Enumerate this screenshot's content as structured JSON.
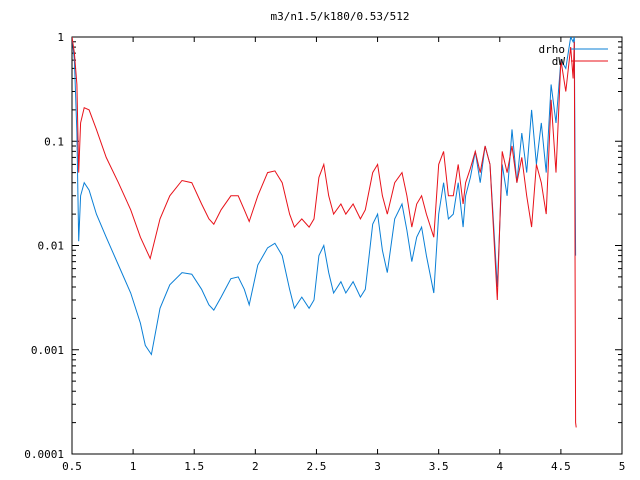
{
  "chart_data": {
    "type": "line",
    "title": "m3/n1.5/k180/0.53/512",
    "xlabel": "",
    "ylabel": "",
    "xlim": [
      0.5,
      5
    ],
    "ylim": [
      0.0001,
      1
    ],
    "yscale": "log",
    "grid": false,
    "legend_position": "top-right",
    "x_ticks": [
      0.5,
      1,
      1.5,
      2,
      2.5,
      3,
      3.5,
      4,
      4.5,
      5
    ],
    "x_tick_labels": [
      "0.5",
      "1",
      "1.5",
      "2",
      "2.5",
      "3",
      "3.5",
      "4",
      "4.5",
      "5"
    ],
    "y_ticks": [
      0.0001,
      0.001,
      0.01,
      0.1,
      1
    ],
    "y_tick_labels": [
      "0.0001",
      "0.001",
      "0.01",
      "0.1",
      "1"
    ],
    "series": [
      {
        "name": "drho",
        "color": "#0a7fd6",
        "points": [
          [
            0.5,
            1.0
          ],
          [
            0.52,
            0.6
          ],
          [
            0.54,
            0.12
          ],
          [
            0.555,
            0.011
          ],
          [
            0.57,
            0.03
          ],
          [
            0.6,
            0.04
          ],
          [
            0.64,
            0.034
          ],
          [
            0.7,
            0.02
          ],
          [
            0.78,
            0.012
          ],
          [
            0.88,
            0.0065
          ],
          [
            0.98,
            0.0035
          ],
          [
            1.06,
            0.0018
          ],
          [
            1.1,
            0.0011
          ],
          [
            1.15,
            0.0009
          ],
          [
            1.22,
            0.0025
          ],
          [
            1.3,
            0.0042
          ],
          [
            1.4,
            0.0055
          ],
          [
            1.48,
            0.0053
          ],
          [
            1.56,
            0.0038
          ],
          [
            1.62,
            0.0027
          ],
          [
            1.66,
            0.0024
          ],
          [
            1.72,
            0.0032
          ],
          [
            1.8,
            0.0048
          ],
          [
            1.86,
            0.005
          ],
          [
            1.91,
            0.0038
          ],
          [
            1.95,
            0.0027
          ],
          [
            2.02,
            0.0065
          ],
          [
            2.1,
            0.0095
          ],
          [
            2.16,
            0.0105
          ],
          [
            2.22,
            0.008
          ],
          [
            2.28,
            0.0038
          ],
          [
            2.32,
            0.0025
          ],
          [
            2.38,
            0.0032
          ],
          [
            2.44,
            0.0025
          ],
          [
            2.48,
            0.003
          ],
          [
            2.52,
            0.008
          ],
          [
            2.56,
            0.01
          ],
          [
            2.6,
            0.0055
          ],
          [
            2.64,
            0.0035
          ],
          [
            2.7,
            0.0045
          ],
          [
            2.74,
            0.0035
          ],
          [
            2.8,
            0.0045
          ],
          [
            2.86,
            0.0032
          ],
          [
            2.9,
            0.0038
          ],
          [
            2.96,
            0.016
          ],
          [
            3.0,
            0.02
          ],
          [
            3.04,
            0.009
          ],
          [
            3.08,
            0.0055
          ],
          [
            3.14,
            0.018
          ],
          [
            3.2,
            0.025
          ],
          [
            3.24,
            0.014
          ],
          [
            3.28,
            0.007
          ],
          [
            3.32,
            0.012
          ],
          [
            3.36,
            0.015
          ],
          [
            3.4,
            0.008
          ],
          [
            3.46,
            0.0035
          ],
          [
            3.5,
            0.02
          ],
          [
            3.54,
            0.04
          ],
          [
            3.58,
            0.018
          ],
          [
            3.62,
            0.02
          ],
          [
            3.66,
            0.04
          ],
          [
            3.7,
            0.015
          ],
          [
            3.72,
            0.03
          ],
          [
            3.76,
            0.045
          ],
          [
            3.8,
            0.08
          ],
          [
            3.84,
            0.04
          ],
          [
            3.88,
            0.09
          ],
          [
            3.92,
            0.06
          ],
          [
            3.96,
            0.01
          ],
          [
            3.98,
            0.004
          ],
          [
            4.02,
            0.06
          ],
          [
            4.06,
            0.03
          ],
          [
            4.1,
            0.13
          ],
          [
            4.14,
            0.04
          ],
          [
            4.18,
            0.12
          ],
          [
            4.22,
            0.05
          ],
          [
            4.26,
            0.2
          ],
          [
            4.3,
            0.06
          ],
          [
            4.34,
            0.15
          ],
          [
            4.38,
            0.05
          ],
          [
            4.42,
            0.35
          ],
          [
            4.46,
            0.15
          ],
          [
            4.5,
            0.6
          ],
          [
            4.54,
            0.5
          ],
          [
            4.58,
            1.0
          ],
          [
            4.6,
            0.9
          ],
          [
            4.61,
            1.0
          ],
          [
            4.62,
            0.008
          ]
        ]
      },
      {
        "name": "dW",
        "color": "#e8121a",
        "points": [
          [
            0.5,
            1.0
          ],
          [
            0.52,
            0.7
          ],
          [
            0.54,
            0.35
          ],
          [
            0.555,
            0.05
          ],
          [
            0.57,
            0.15
          ],
          [
            0.6,
            0.21
          ],
          [
            0.64,
            0.2
          ],
          [
            0.7,
            0.13
          ],
          [
            0.78,
            0.07
          ],
          [
            0.88,
            0.04
          ],
          [
            0.98,
            0.022
          ],
          [
            1.06,
            0.012
          ],
          [
            1.14,
            0.0075
          ],
          [
            1.22,
            0.018
          ],
          [
            1.3,
            0.03
          ],
          [
            1.4,
            0.042
          ],
          [
            1.48,
            0.04
          ],
          [
            1.56,
            0.025
          ],
          [
            1.62,
            0.018
          ],
          [
            1.66,
            0.016
          ],
          [
            1.72,
            0.022
          ],
          [
            1.8,
            0.03
          ],
          [
            1.86,
            0.03
          ],
          [
            1.91,
            0.022
          ],
          [
            1.95,
            0.017
          ],
          [
            2.02,
            0.03
          ],
          [
            2.1,
            0.05
          ],
          [
            2.16,
            0.052
          ],
          [
            2.22,
            0.04
          ],
          [
            2.28,
            0.02
          ],
          [
            2.32,
            0.015
          ],
          [
            2.38,
            0.018
          ],
          [
            2.44,
            0.015
          ],
          [
            2.48,
            0.018
          ],
          [
            2.52,
            0.045
          ],
          [
            2.56,
            0.06
          ],
          [
            2.6,
            0.03
          ],
          [
            2.64,
            0.02
          ],
          [
            2.7,
            0.025
          ],
          [
            2.74,
            0.02
          ],
          [
            2.8,
            0.025
          ],
          [
            2.86,
            0.018
          ],
          [
            2.9,
            0.022
          ],
          [
            2.96,
            0.05
          ],
          [
            3.0,
            0.06
          ],
          [
            3.04,
            0.03
          ],
          [
            3.08,
            0.02
          ],
          [
            3.14,
            0.04
          ],
          [
            3.2,
            0.05
          ],
          [
            3.24,
            0.03
          ],
          [
            3.28,
            0.015
          ],
          [
            3.32,
            0.025
          ],
          [
            3.36,
            0.03
          ],
          [
            3.4,
            0.02
          ],
          [
            3.46,
            0.012
          ],
          [
            3.5,
            0.06
          ],
          [
            3.54,
            0.08
          ],
          [
            3.58,
            0.03
          ],
          [
            3.62,
            0.03
          ],
          [
            3.66,
            0.06
          ],
          [
            3.7,
            0.025
          ],
          [
            3.72,
            0.04
          ],
          [
            3.76,
            0.055
          ],
          [
            3.8,
            0.08
          ],
          [
            3.84,
            0.05
          ],
          [
            3.88,
            0.09
          ],
          [
            3.92,
            0.06
          ],
          [
            3.96,
            0.008
          ],
          [
            3.98,
            0.003
          ],
          [
            4.02,
            0.08
          ],
          [
            4.06,
            0.05
          ],
          [
            4.1,
            0.09
          ],
          [
            4.14,
            0.04
          ],
          [
            4.18,
            0.07
          ],
          [
            4.22,
            0.03
          ],
          [
            4.26,
            0.015
          ],
          [
            4.3,
            0.06
          ],
          [
            4.34,
            0.04
          ],
          [
            4.38,
            0.02
          ],
          [
            4.42,
            0.25
          ],
          [
            4.46,
            0.05
          ],
          [
            4.5,
            0.6
          ],
          [
            4.54,
            0.3
          ],
          [
            4.58,
            0.8
          ],
          [
            4.6,
            0.4
          ],
          [
            4.61,
            0.9
          ],
          [
            4.62,
            0.0002
          ],
          [
            4.625,
            0.00018
          ]
        ]
      }
    ]
  }
}
